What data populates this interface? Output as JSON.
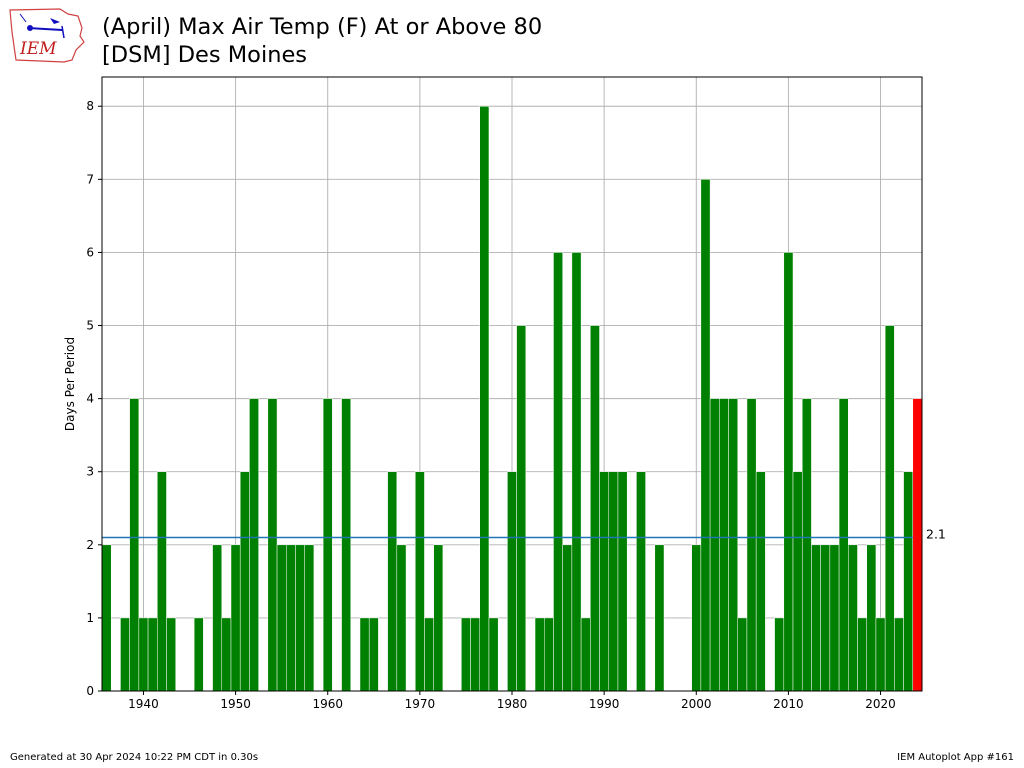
{
  "header": {
    "title_line1": "(April) Max Air Temp (F) At or Above 80",
    "title_line2": "[DSM] Des Moines",
    "logo_text": "IEM"
  },
  "footer": {
    "generated": "Generated at 30 Apr 2024 10:22 PM CDT in 0.30s",
    "app": "IEM Autoplot App #161"
  },
  "colors": {
    "bar": "#008000",
    "current_bar": "#ff0000",
    "average_line": "#1f77b4",
    "grid": "#b0b0b0"
  },
  "chart_data": {
    "type": "bar",
    "ylabel": "Days Per Period",
    "xlabel": "",
    "ylim": [
      0,
      8.4
    ],
    "xlim": [
      1935.5,
      2024.5
    ],
    "grid": true,
    "x_ticks": [
      1940,
      1950,
      1960,
      1970,
      1980,
      1990,
      2000,
      2010,
      2020
    ],
    "y_ticks": [
      0,
      1,
      2,
      3,
      4,
      5,
      6,
      7,
      8
    ],
    "average": 2.1,
    "average_label": "2.1",
    "current_year": 2024,
    "years": [
      1936,
      1937,
      1938,
      1939,
      1940,
      1941,
      1942,
      1943,
      1944,
      1945,
      1946,
      1947,
      1948,
      1949,
      1950,
      1951,
      1952,
      1953,
      1954,
      1955,
      1956,
      1957,
      1958,
      1959,
      1960,
      1961,
      1962,
      1963,
      1964,
      1965,
      1966,
      1967,
      1968,
      1969,
      1970,
      1971,
      1972,
      1973,
      1974,
      1975,
      1976,
      1977,
      1978,
      1979,
      1980,
      1981,
      1982,
      1983,
      1984,
      1985,
      1986,
      1987,
      1988,
      1989,
      1990,
      1991,
      1992,
      1993,
      1994,
      1995,
      1996,
      1997,
      1998,
      1999,
      2000,
      2001,
      2002,
      2003,
      2004,
      2005,
      2006,
      2007,
      2008,
      2009,
      2010,
      2011,
      2012,
      2013,
      2014,
      2015,
      2016,
      2017,
      2018,
      2019,
      2020,
      2021,
      2022,
      2023,
      2024
    ],
    "values": [
      2,
      0,
      1,
      4,
      1,
      1,
      3,
      1,
      0,
      0,
      1,
      0,
      2,
      1,
      2,
      3,
      4,
      0,
      4,
      2,
      2,
      2,
      2,
      0,
      4,
      0,
      4,
      0,
      1,
      1,
      0,
      3,
      2,
      0,
      3,
      1,
      2,
      0,
      0,
      1,
      1,
      8,
      1,
      0,
      3,
      5,
      0,
      1,
      1,
      6,
      2,
      6,
      1,
      5,
      3,
      3,
      3,
      0,
      3,
      0,
      2,
      0,
      0,
      0,
      2,
      7,
      4,
      4,
      4,
      1,
      4,
      3,
      0,
      1,
      6,
      3,
      4,
      2,
      2,
      2,
      4,
      2,
      1,
      2,
      1,
      5,
      1,
      3,
      4
    ]
  }
}
